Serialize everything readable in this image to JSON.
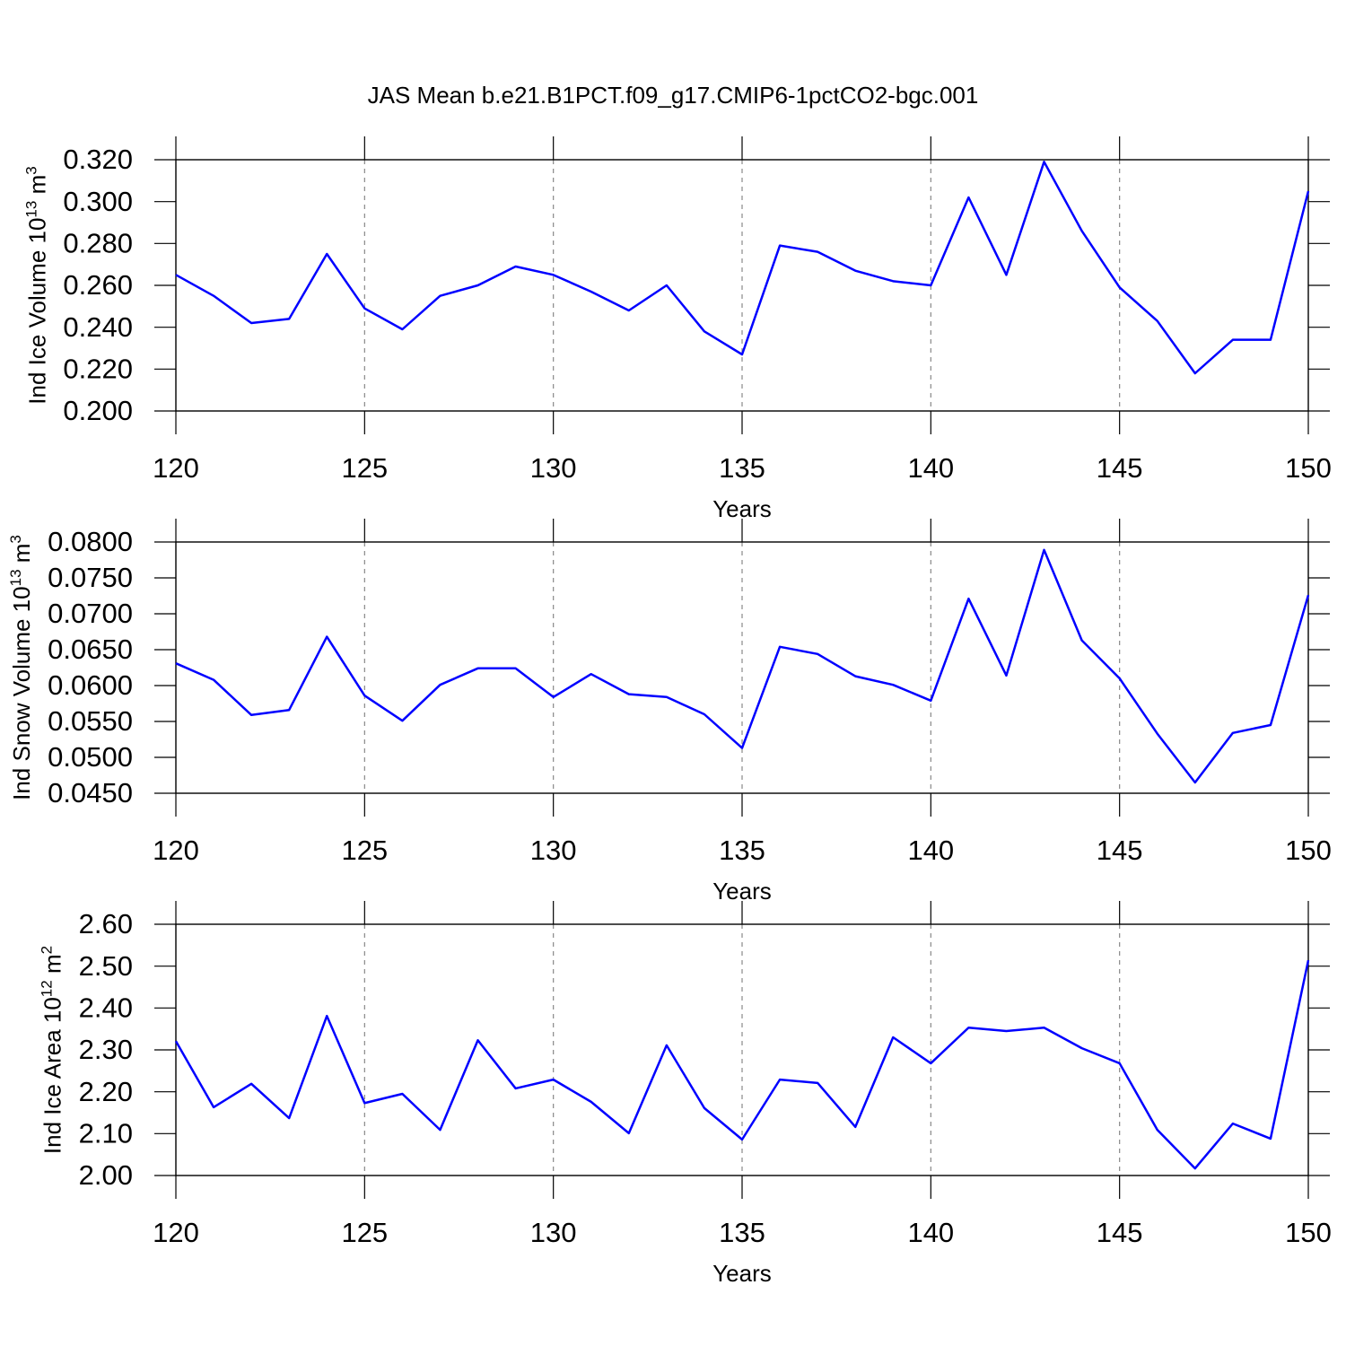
{
  "title": "JAS Mean b.e21.B1PCT.f09_g17.CMIP6-1pctCO2-bgc.001",
  "chart_data": [
    {
      "type": "line",
      "ylabel": [
        "Ind Ice Volume 10",
        "13",
        " m",
        "3"
      ],
      "xlabel": "Years",
      "color": "#0000ff",
      "grid": "x",
      "x": [
        120,
        121,
        122,
        123,
        124,
        125,
        126,
        127,
        128,
        129,
        130,
        131,
        132,
        133,
        134,
        135,
        136,
        137,
        138,
        139,
        140,
        141,
        142,
        143,
        144,
        145,
        146,
        147,
        148,
        149,
        150
      ],
      "values": [
        0.265,
        0.255,
        0.242,
        0.244,
        0.275,
        0.249,
        0.239,
        0.255,
        0.26,
        0.269,
        0.265,
        0.257,
        0.248,
        0.26,
        0.238,
        0.227,
        0.279,
        0.276,
        0.267,
        0.262,
        0.26,
        0.302,
        0.265,
        0.319,
        0.286,
        0.259,
        0.243,
        0.218,
        0.234,
        0.234,
        0.305
      ],
      "xlim": [
        120,
        150
      ],
      "xticks": [
        120,
        125,
        130,
        135,
        140,
        145,
        150
      ],
      "ylim": [
        0.2,
        0.32
      ],
      "yticks": [
        {
          "value": 0.2,
          "label": "0.200"
        },
        {
          "value": 0.22,
          "label": "0.220"
        },
        {
          "value": 0.24,
          "label": "0.240"
        },
        {
          "value": 0.26,
          "label": "0.260"
        },
        {
          "value": 0.28,
          "label": "0.280"
        },
        {
          "value": 0.3,
          "label": "0.300"
        },
        {
          "value": 0.32,
          "label": "0.320"
        }
      ]
    },
    {
      "type": "line",
      "ylabel": [
        "Ind Snow Volume 10",
        "13",
        " m",
        "3"
      ],
      "xlabel": "Years",
      "color": "#0000ff",
      "grid": "x",
      "x": [
        120,
        121,
        122,
        123,
        124,
        125,
        126,
        127,
        128,
        129,
        130,
        131,
        132,
        133,
        134,
        135,
        136,
        137,
        138,
        139,
        140,
        141,
        142,
        143,
        144,
        145,
        146,
        147,
        148,
        149,
        150
      ],
      "values": [
        0.0631,
        0.0608,
        0.0559,
        0.0566,
        0.0668,
        0.0586,
        0.0551,
        0.0601,
        0.0624,
        0.0624,
        0.0584,
        0.0616,
        0.0588,
        0.0584,
        0.056,
        0.0513,
        0.0654,
        0.0644,
        0.0613,
        0.0601,
        0.0579,
        0.0721,
        0.0614,
        0.0789,
        0.0663,
        0.061,
        0.0533,
        0.0465,
        0.0534,
        0.0545,
        0.0726
      ],
      "xlim": [
        120,
        150
      ],
      "xticks": [
        120,
        125,
        130,
        135,
        140,
        145,
        150
      ],
      "ylim": [
        0.045,
        0.08
      ],
      "yticks": [
        {
          "value": 0.045,
          "label": "0.0450"
        },
        {
          "value": 0.05,
          "label": "0.0500"
        },
        {
          "value": 0.055,
          "label": "0.0550"
        },
        {
          "value": 0.06,
          "label": "0.0600"
        },
        {
          "value": 0.065,
          "label": "0.0650"
        },
        {
          "value": 0.07,
          "label": "0.0700"
        },
        {
          "value": 0.075,
          "label": "0.0750"
        },
        {
          "value": 0.08,
          "label": "0.0800"
        }
      ]
    },
    {
      "type": "line",
      "ylabel": [
        "Ind Ice Area 10",
        "12",
        " m",
        "2"
      ],
      "xlabel": "Years",
      "color": "#0000ff",
      "grid": "x",
      "x": [
        120,
        121,
        122,
        123,
        124,
        125,
        126,
        127,
        128,
        129,
        130,
        131,
        132,
        133,
        134,
        135,
        136,
        137,
        138,
        139,
        140,
        141,
        142,
        143,
        144,
        145,
        146,
        147,
        148,
        149,
        150
      ],
      "values": [
        2.321,
        2.163,
        2.219,
        2.137,
        2.381,
        2.173,
        2.195,
        2.109,
        2.323,
        2.208,
        2.229,
        2.176,
        2.101,
        2.311,
        2.161,
        2.086,
        2.229,
        2.221,
        2.116,
        2.33,
        2.268,
        2.353,
        2.345,
        2.353,
        2.304,
        2.268,
        2.109,
        2.017,
        2.124,
        2.088,
        2.514
      ],
      "xlim": [
        120,
        150
      ],
      "xticks": [
        120,
        125,
        130,
        135,
        140,
        145,
        150
      ],
      "ylim": [
        2.0,
        2.6
      ],
      "yticks": [
        {
          "value": 2.0,
          "label": "2.00"
        },
        {
          "value": 2.1,
          "label": "2.10"
        },
        {
          "value": 2.2,
          "label": "2.20"
        },
        {
          "value": 2.3,
          "label": "2.30"
        },
        {
          "value": 2.4,
          "label": "2.40"
        },
        {
          "value": 2.5,
          "label": "2.50"
        },
        {
          "value": 2.6,
          "label": "2.60"
        }
      ]
    }
  ]
}
